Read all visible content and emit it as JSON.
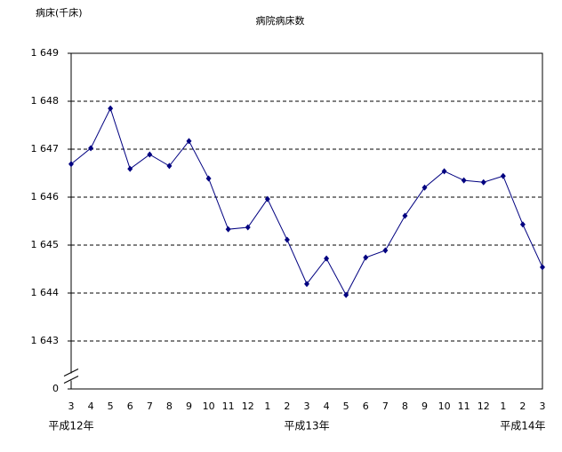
{
  "chart_data": {
    "type": "line",
    "title": "病院病床数",
    "y_label": "病床(千床)",
    "categories": [
      "3",
      "4",
      "5",
      "6",
      "7",
      "8",
      "9",
      "10",
      "11",
      "12",
      "1",
      "2",
      "3",
      "4",
      "5",
      "6",
      "7",
      "8",
      "9",
      "10",
      "11",
      "12",
      "1",
      "2",
      "3"
    ],
    "group_labels": [
      {
        "label": "平成12年",
        "index": 0
      },
      {
        "label": "平成13年",
        "index": 12
      },
      {
        "label": "平成14年",
        "index": 23
      }
    ],
    "series": [
      {
        "name": "病院病床数",
        "color": "#000080",
        "values": [
          1646.69,
          1647.02,
          1647.85,
          1646.59,
          1646.89,
          1646.65,
          1647.17,
          1646.39,
          1645.33,
          1645.37,
          1645.96,
          1645.11,
          1644.19,
          1644.72,
          1643.96,
          1644.74,
          1644.89,
          1645.61,
          1646.2,
          1646.54,
          1646.35,
          1646.31,
          1646.44,
          1645.43,
          1644.54
        ]
      }
    ],
    "ylim": [
      1642,
      1649
    ],
    "axis_break": true,
    "yticks": [
      0,
      {
        "value": 1643,
        "label": "1 643"
      },
      {
        "value": 1644,
        "label": "1 644"
      },
      {
        "value": 1645,
        "label": "1 645"
      },
      {
        "value": 1646,
        "label": "1 646"
      },
      {
        "value": 1647,
        "label": "1 647"
      },
      {
        "value": 1648,
        "label": "1 648"
      },
      {
        "value": 1649,
        "label": "1 649"
      }
    ],
    "grid": true
  }
}
